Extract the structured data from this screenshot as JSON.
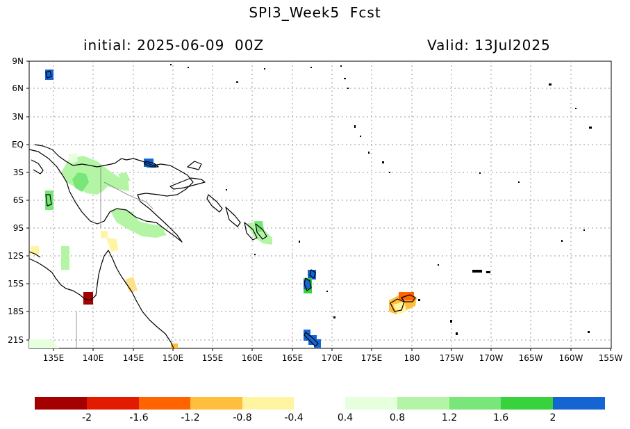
{
  "header": {
    "title": "SPI3_Week5  Fcst",
    "initial": "initial: 2025-06-09  00Z",
    "valid": "Valid: 13Jul2025"
  },
  "map": {
    "lat_labels": [
      "9N",
      "6N",
      "3N",
      "EQ",
      "3S",
      "6S",
      "9S",
      "12S",
      "15S",
      "18S",
      "21S"
    ],
    "lon_labels": [
      "135E",
      "140E",
      "145E",
      "150E",
      "155E",
      "160E",
      "165E",
      "170E",
      "175E",
      "180",
      "175W",
      "170W",
      "165W",
      "160W",
      "155W"
    ],
    "grid": true,
    "lon_range": [
      "132E",
      "155W"
    ],
    "lat_range": [
      "22S",
      "9N"
    ]
  },
  "colorbar": {
    "labels": [
      "-2",
      "-1.6",
      "-1.2",
      "-0.8",
      "-0.4",
      "0.4",
      "0.8",
      "1.2",
      "1.6",
      "2"
    ],
    "dry_colors": [
      "#a50000",
      "#e11a00",
      "#ff6400",
      "#ffbe3c",
      "#fff5a0"
    ],
    "wet_colors": [
      "#e6ffdc",
      "#b4f5a5",
      "#78e678",
      "#37d23c",
      "#1464d2"
    ]
  }
}
